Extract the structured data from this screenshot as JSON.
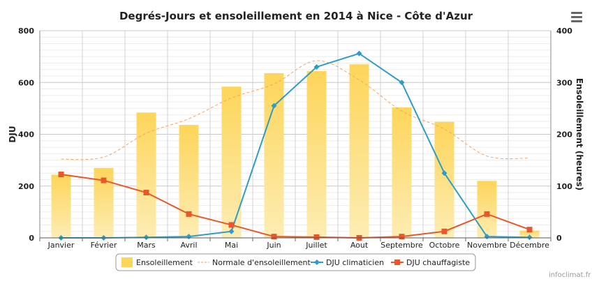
{
  "chart_data": {
    "type": "bar+line",
    "title": "Degrés-Jours et ensoleillement en 2014 à Nice - Côte d'Azur",
    "categories": [
      "Janvier",
      "Février",
      "Mars",
      "Avril",
      "Mai",
      "Juin",
      "Juillet",
      "Aout",
      "Septembre",
      "Octobre",
      "Novembre",
      "Décembre"
    ],
    "y_left": {
      "label": "DJU",
      "min": 0,
      "max": 800,
      "ticks": [
        "0",
        "200",
        "400",
        "600",
        "800"
      ]
    },
    "y_right": {
      "label": "Ensoleillement (heures)",
      "min": 0,
      "max": 400,
      "ticks": [
        "0",
        "100",
        "200",
        "300",
        "400"
      ]
    },
    "series": [
      {
        "name": "Ensoleillement",
        "type": "bar",
        "axis": "right",
        "color": "#fbd65b",
        "values": [
          122,
          135,
          242,
          218,
          292,
          318,
          322,
          335,
          252,
          224,
          110,
          14
        ]
      },
      {
        "name": "Normale d'ensoleillement",
        "type": "dashed-line",
        "axis": "right",
        "color": "#f4a460",
        "values": [
          152,
          156,
          202,
          230,
          270,
          297,
          342,
          305,
          245,
          210,
          158,
          154
        ]
      },
      {
        "name": "DJU climaticien",
        "type": "line",
        "axis": "left",
        "color": "#2e9cc5",
        "values": [
          0,
          0,
          2,
          5,
          25,
          510,
          660,
          712,
          600,
          250,
          5,
          2
        ]
      },
      {
        "name": "DJU chauffagiste",
        "type": "line",
        "axis": "left",
        "color": "#e8572a",
        "values": [
          245,
          222,
          175,
          92,
          50,
          5,
          3,
          0,
          5,
          25,
          92,
          32
        ]
      }
    ],
    "legend_position": "bottom",
    "grid": true
  },
  "credit": "infoclimat.fr",
  "menu_icon": "hamburger-menu-icon"
}
